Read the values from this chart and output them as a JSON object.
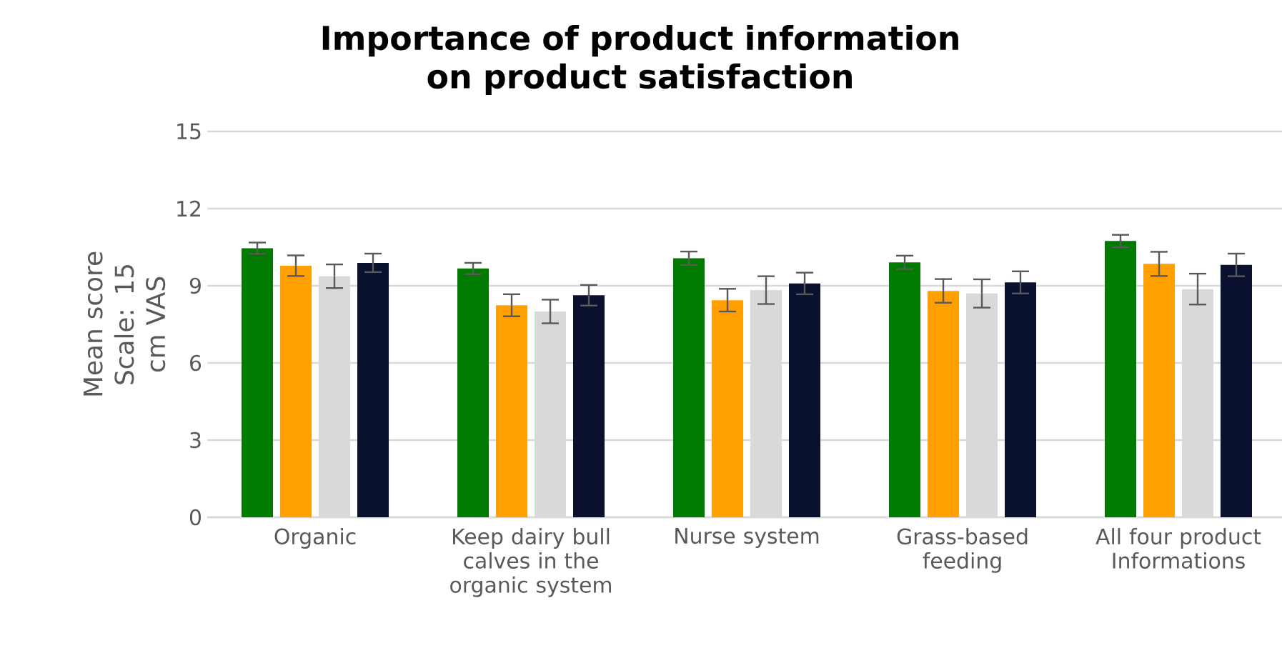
{
  "chart_data": {
    "type": "bar",
    "title": "Importance of product information on product satisfaction",
    "ylabel": "Mean score Scale: 15 cm VAS",
    "categories": [
      "Organic",
      "Keep dairy bull calves  in the organic system",
      "Nurse system",
      "Grass-based feeding",
      "All four product Informations"
    ],
    "series": [
      {
        "color": "#007a00",
        "values": [
          10.46,
          9.67,
          10.07,
          9.91,
          10.74
        ],
        "errors": [
          0.22,
          0.22,
          0.26,
          0.26,
          0.24
        ]
      },
      {
        "color": "#ff9f00",
        "values": [
          9.78,
          8.24,
          8.44,
          8.8,
          9.85
        ],
        "errors": [
          0.4,
          0.43,
          0.44,
          0.46,
          0.47
        ]
      },
      {
        "color": "#d9d9d9",
        "values": [
          9.37,
          8.0,
          8.83,
          8.7,
          8.87
        ],
        "errors": [
          0.46,
          0.46,
          0.54,
          0.55,
          0.6
        ]
      },
      {
        "color": "#0a112e",
        "values": [
          9.89,
          8.63,
          9.09,
          9.13,
          9.81
        ],
        "errors": [
          0.36,
          0.4,
          0.42,
          0.43,
          0.44
        ]
      }
    ],
    "ylim": [
      0,
      15
    ],
    "yticks": [
      0,
      3,
      6,
      9,
      12,
      15
    ],
    "grid": "y",
    "legend": false
  }
}
